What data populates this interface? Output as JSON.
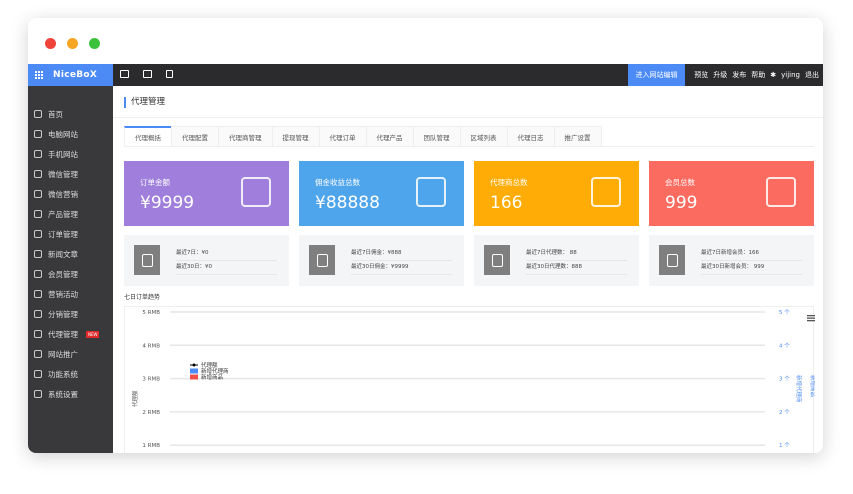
{
  "window": {
    "dots": [
      "#f0443a",
      "#f6a623",
      "#3cc13b"
    ]
  },
  "topbar": {
    "logo": "NiceBoX",
    "enter_editor": "进入网站编辑",
    "links": [
      "预览",
      "升级",
      "发布",
      "帮助"
    ],
    "user": "yijing",
    "logout": "退出"
  },
  "sidebar": {
    "items": [
      {
        "label": "首页",
        "icon": "home-icon"
      },
      {
        "label": "电脑网站",
        "icon": "monitor-icon"
      },
      {
        "label": "手机网站",
        "icon": "phone-icon"
      },
      {
        "label": "微信管理",
        "icon": "wechat-icon"
      },
      {
        "label": "微信营销",
        "icon": "gamepad-icon"
      },
      {
        "label": "产品管理",
        "icon": "product-icon"
      },
      {
        "label": "订单管理",
        "icon": "cart-icon"
      },
      {
        "label": "新闻文章",
        "icon": "article-icon"
      },
      {
        "label": "会员管理",
        "icon": "user-icon"
      },
      {
        "label": "营销活动",
        "icon": "tag-icon"
      },
      {
        "label": "分销管理",
        "icon": "hierarchy-icon"
      },
      {
        "label": "代理管理",
        "icon": "agent-icon",
        "badge": "NEW"
      },
      {
        "label": "网站推广",
        "icon": "chart-icon"
      },
      {
        "label": "功能系统",
        "icon": "toolbox-icon"
      },
      {
        "label": "系统设置",
        "icon": "gear-icon"
      }
    ]
  },
  "page": {
    "title": "代理管理",
    "tabs": [
      "代理概括",
      "代理配置",
      "代理商管理",
      "提现管理",
      "代理订单",
      "代理产品",
      "团队管理",
      "区域列表",
      "代理日志",
      "推广设置"
    ]
  },
  "cards": [
    {
      "label": "订单金额",
      "value": "¥9999",
      "color": "#9f7fdb",
      "icon": "money-hand-icon",
      "lines": [
        "最近7日：¥0",
        "最近30日：¥0"
      ]
    },
    {
      "label": "佣金收益总数",
      "value": "¥88888",
      "color": "#4fa5ec",
      "icon": "tablet-chart-icon",
      "lines": [
        "最近7日佣金：¥888",
        "最近30日佣金：¥9999"
      ]
    },
    {
      "label": "代理商总数",
      "value": "166",
      "color": "#ffad06",
      "icon": "org-chart-icon",
      "lines": [
        "最近7日代理数： 88",
        "最近30日代理数：888"
      ]
    },
    {
      "label": "会员总数",
      "value": "999",
      "color": "#fc6b60",
      "icon": "folder-icon",
      "lines": [
        "最近7日新增会员：166",
        "最近30日新增会员： 999"
      ]
    }
  ],
  "chart_data": {
    "type": "line",
    "title": "七日订单趋势",
    "ylabel": "代理额",
    "y2labels": [
      "新增代理商",
      "新增商品"
    ],
    "yticks": [
      "5 RMB",
      "4 RMB",
      "3 RMB",
      "2 RMB",
      "1 RMB"
    ],
    "y2ticks": [
      "5 个",
      "4 个",
      "3 个",
      "2 个",
      "1 个"
    ],
    "legend": [
      {
        "name": "代理额",
        "color": "#000000"
      },
      {
        "name": "新增代理商",
        "color": "#4c8bf5"
      },
      {
        "name": "新增商品",
        "color": "#f4504a"
      }
    ],
    "legend_position": "left",
    "grid": true
  }
}
